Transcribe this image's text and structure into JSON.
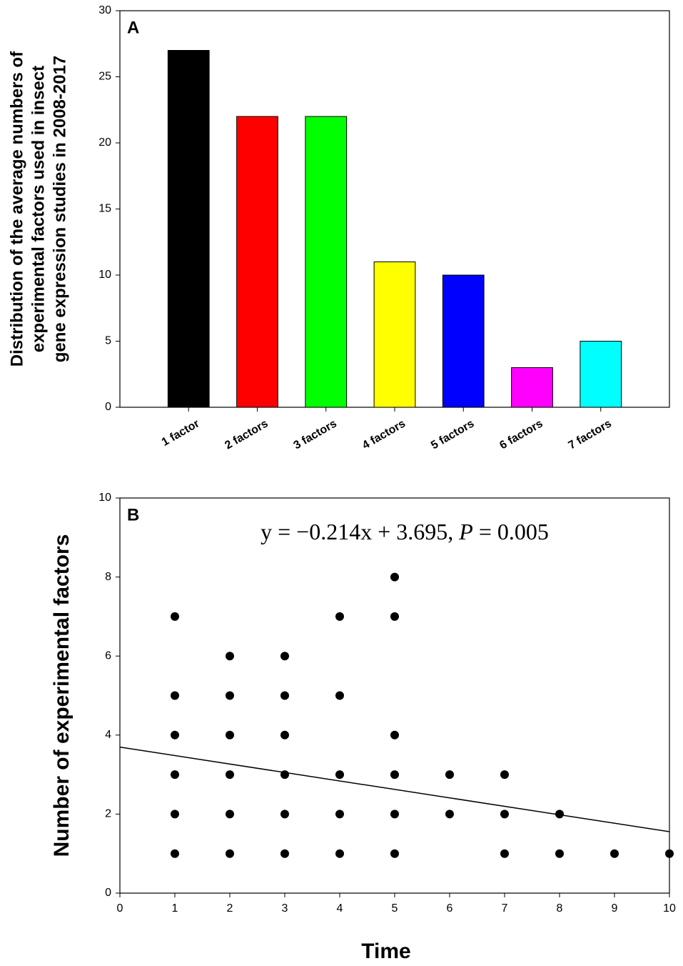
{
  "chart_data": [
    {
      "type": "bar",
      "panel_label": "A",
      "y_label": [
        "Distribution of the average numbers of",
        "experimental factors used in insect",
        "gene expression studies in 2008-2017"
      ],
      "categories": [
        "1 factor",
        "2 factors",
        "3 factors",
        "4 factors",
        "5 factors",
        "6 factors",
        "7 factors"
      ],
      "values": [
        27,
        22,
        22,
        11,
        10,
        3,
        5
      ],
      "colors": [
        "#000000",
        "#ff0000",
        "#00ff00",
        "#ffff00",
        "#0000ff",
        "#ff00ff",
        "#00ffff"
      ],
      "ylim": [
        0,
        30
      ],
      "yticks": [
        0,
        5,
        10,
        15,
        20,
        25,
        30
      ]
    },
    {
      "type": "scatter",
      "panel_label": "B",
      "annotation": [
        "y = −0.214x + 3.695, ",
        "P",
        " = 0.005"
      ],
      "x_label": "Time",
      "y_label": "Number of experimental factors",
      "x": [
        1,
        1,
        1,
        1,
        1,
        1,
        2,
        2,
        2,
        2,
        2,
        2,
        3,
        3,
        3,
        3,
        3,
        3,
        4,
        4,
        4,
        4,
        4,
        5,
        5,
        5,
        5,
        5,
        5,
        6,
        6,
        7,
        7,
        7,
        8,
        8,
        9,
        10
      ],
      "values": [
        7,
        5,
        4,
        3,
        2,
        1,
        6,
        5,
        4,
        3,
        2,
        1,
        6,
        5,
        4,
        3,
        2,
        1,
        7,
        5,
        3,
        2,
        1,
        8,
        7,
        4,
        3,
        2,
        1,
        3,
        2,
        3,
        2,
        1,
        2,
        1,
        1,
        1
      ],
      "color": "#000000",
      "trendline": {
        "slope": -0.214,
        "intercept": 3.695
      },
      "xlim": [
        0,
        10
      ],
      "xticks": [
        0,
        1,
        2,
        3,
        4,
        5,
        6,
        7,
        8,
        9,
        10
      ],
      "ylim": [
        0,
        10
      ],
      "yticks": [
        0,
        2,
        4,
        6,
        8,
        10
      ]
    }
  ]
}
